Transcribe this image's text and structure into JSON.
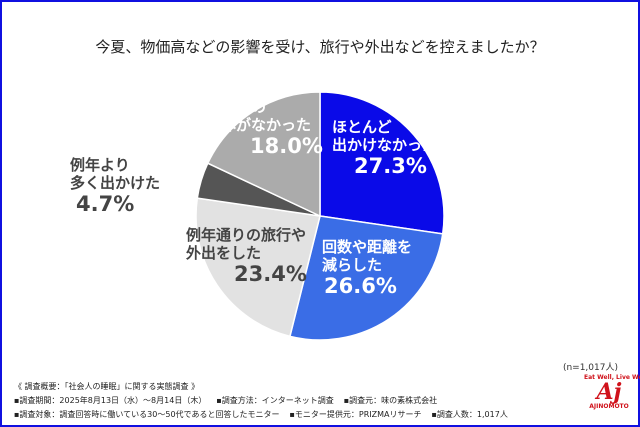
{
  "chart_data": {
    "type": "pie",
    "title": "今夏、物価高などの影響を受け、旅行や外出などを控えましたか？",
    "slices": [
      {
        "label": "ほとんど出かけなかった",
        "value": 27.3,
        "display": "27.3%",
        "color": "#0a0ae8"
      },
      {
        "label": "回数や距離を減らした",
        "value": 26.6,
        "display": "26.6%",
        "color": "#3a6de6"
      },
      {
        "label": "例年通りの旅行や外出をした",
        "value": 23.4,
        "display": "23.4%",
        "color": "#e2e2e2"
      },
      {
        "label": "例年より多く出かけた",
        "value": 4.7,
        "display": "4.7%",
        "color": "#555555"
      },
      {
        "label": "旅行や外出の予定自体がなかった",
        "value": 18.0,
        "display": "18.0%",
        "color": "#ababab"
      }
    ],
    "start": "top",
    "direction": "clockwise"
  },
  "labels": {
    "s0": [
      "ほとんど",
      "出かけなかった"
    ],
    "s1": [
      "回数や距離を",
      "減らした"
    ],
    "s2": [
      "例年通りの旅行や",
      "外出をした"
    ],
    "s3": [
      "例年より",
      "多く出かけた"
    ],
    "s4": [
      "旅行や外出の",
      "予定自体がなかった"
    ]
  },
  "sample": "(n=1,017人)",
  "notes": {
    "heading": "《 調査概要：「社会人の睡眠」に関する実態調査 》",
    "line1": [
      "▪調査期間：2025年8月13日（水）～8月14日（木）",
      "▪調査方法：インターネット調査",
      "▪調査元：味の素株式会社"
    ],
    "line2": [
      "▪調査対象：調査回答時に働いている30～50代であると回答したモニター",
      "▪モニター提供元：PRIZMAリサーチ",
      "▪調査人数：1,017人"
    ]
  },
  "logo": {
    "tagline": "Eat Well, Live Well.",
    "mark": "Aj",
    "brand": "AJINOMOTO"
  }
}
